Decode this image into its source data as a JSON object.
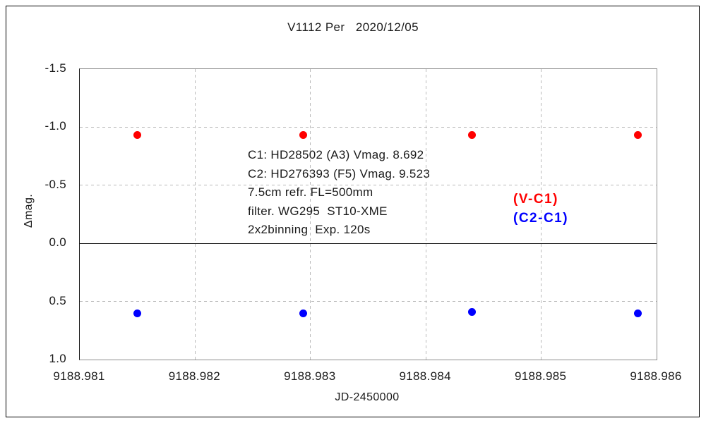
{
  "chart_data": {
    "type": "scatter",
    "title": "V1112 Per   2020/12/05",
    "xlabel": "JD-2450000",
    "ylabel": "Δmag.",
    "x_axis": {
      "min": 9188.981,
      "max": 9188.986,
      "ticks": [
        9188.981,
        9188.982,
        9188.983,
        9188.984,
        9188.985,
        9188.986
      ],
      "tick_labels": [
        "9188.981",
        "9188.982",
        "9188.983",
        "9188.984",
        "9188.985",
        "9188.986"
      ]
    },
    "y_axis": {
      "top": -1.5,
      "bottom": 1.0,
      "inverted_magnitude_axis": true,
      "ticks": [
        -1.5,
        -1.0,
        -0.5,
        0.0,
        0.5,
        1.0
      ],
      "tick_labels": [
        "-1.5",
        "-1.0",
        "-0.5",
        "0.0",
        "0.5",
        "1.0"
      ],
      "zero_line": 0.0
    },
    "grid": "dashed",
    "series": [
      {
        "name": "(V-C1)",
        "color": "#ff0000",
        "x": [
          9188.9815,
          9188.98294,
          9188.9844,
          9188.98584
        ],
        "y": [
          -0.93,
          -0.93,
          -0.93,
          -0.93
        ]
      },
      {
        "name": "(C2-C1)",
        "color": "#0000ff",
        "x": [
          9188.9815,
          9188.98294,
          9188.9844,
          9188.98584
        ],
        "y": [
          0.6,
          0.6,
          0.59,
          0.6
        ]
      }
    ],
    "legend": {
      "position": "middle-right",
      "entries": [
        {
          "label": "(V-C1)",
          "color": "#ff0000"
        },
        {
          "label": "(C2-C1)",
          "color": "#0000ff"
        }
      ]
    },
    "annotation": {
      "lines": [
        "C1: HD28502 (A3) Vmag. 8.692",
        "C2: HD276393 (F5) Vmag. 9.523",
        "7.5cm refr. FL=500mm",
        "filter. WG295  ST10-XME",
        "2x2binning  Exp. 120s"
      ]
    }
  }
}
